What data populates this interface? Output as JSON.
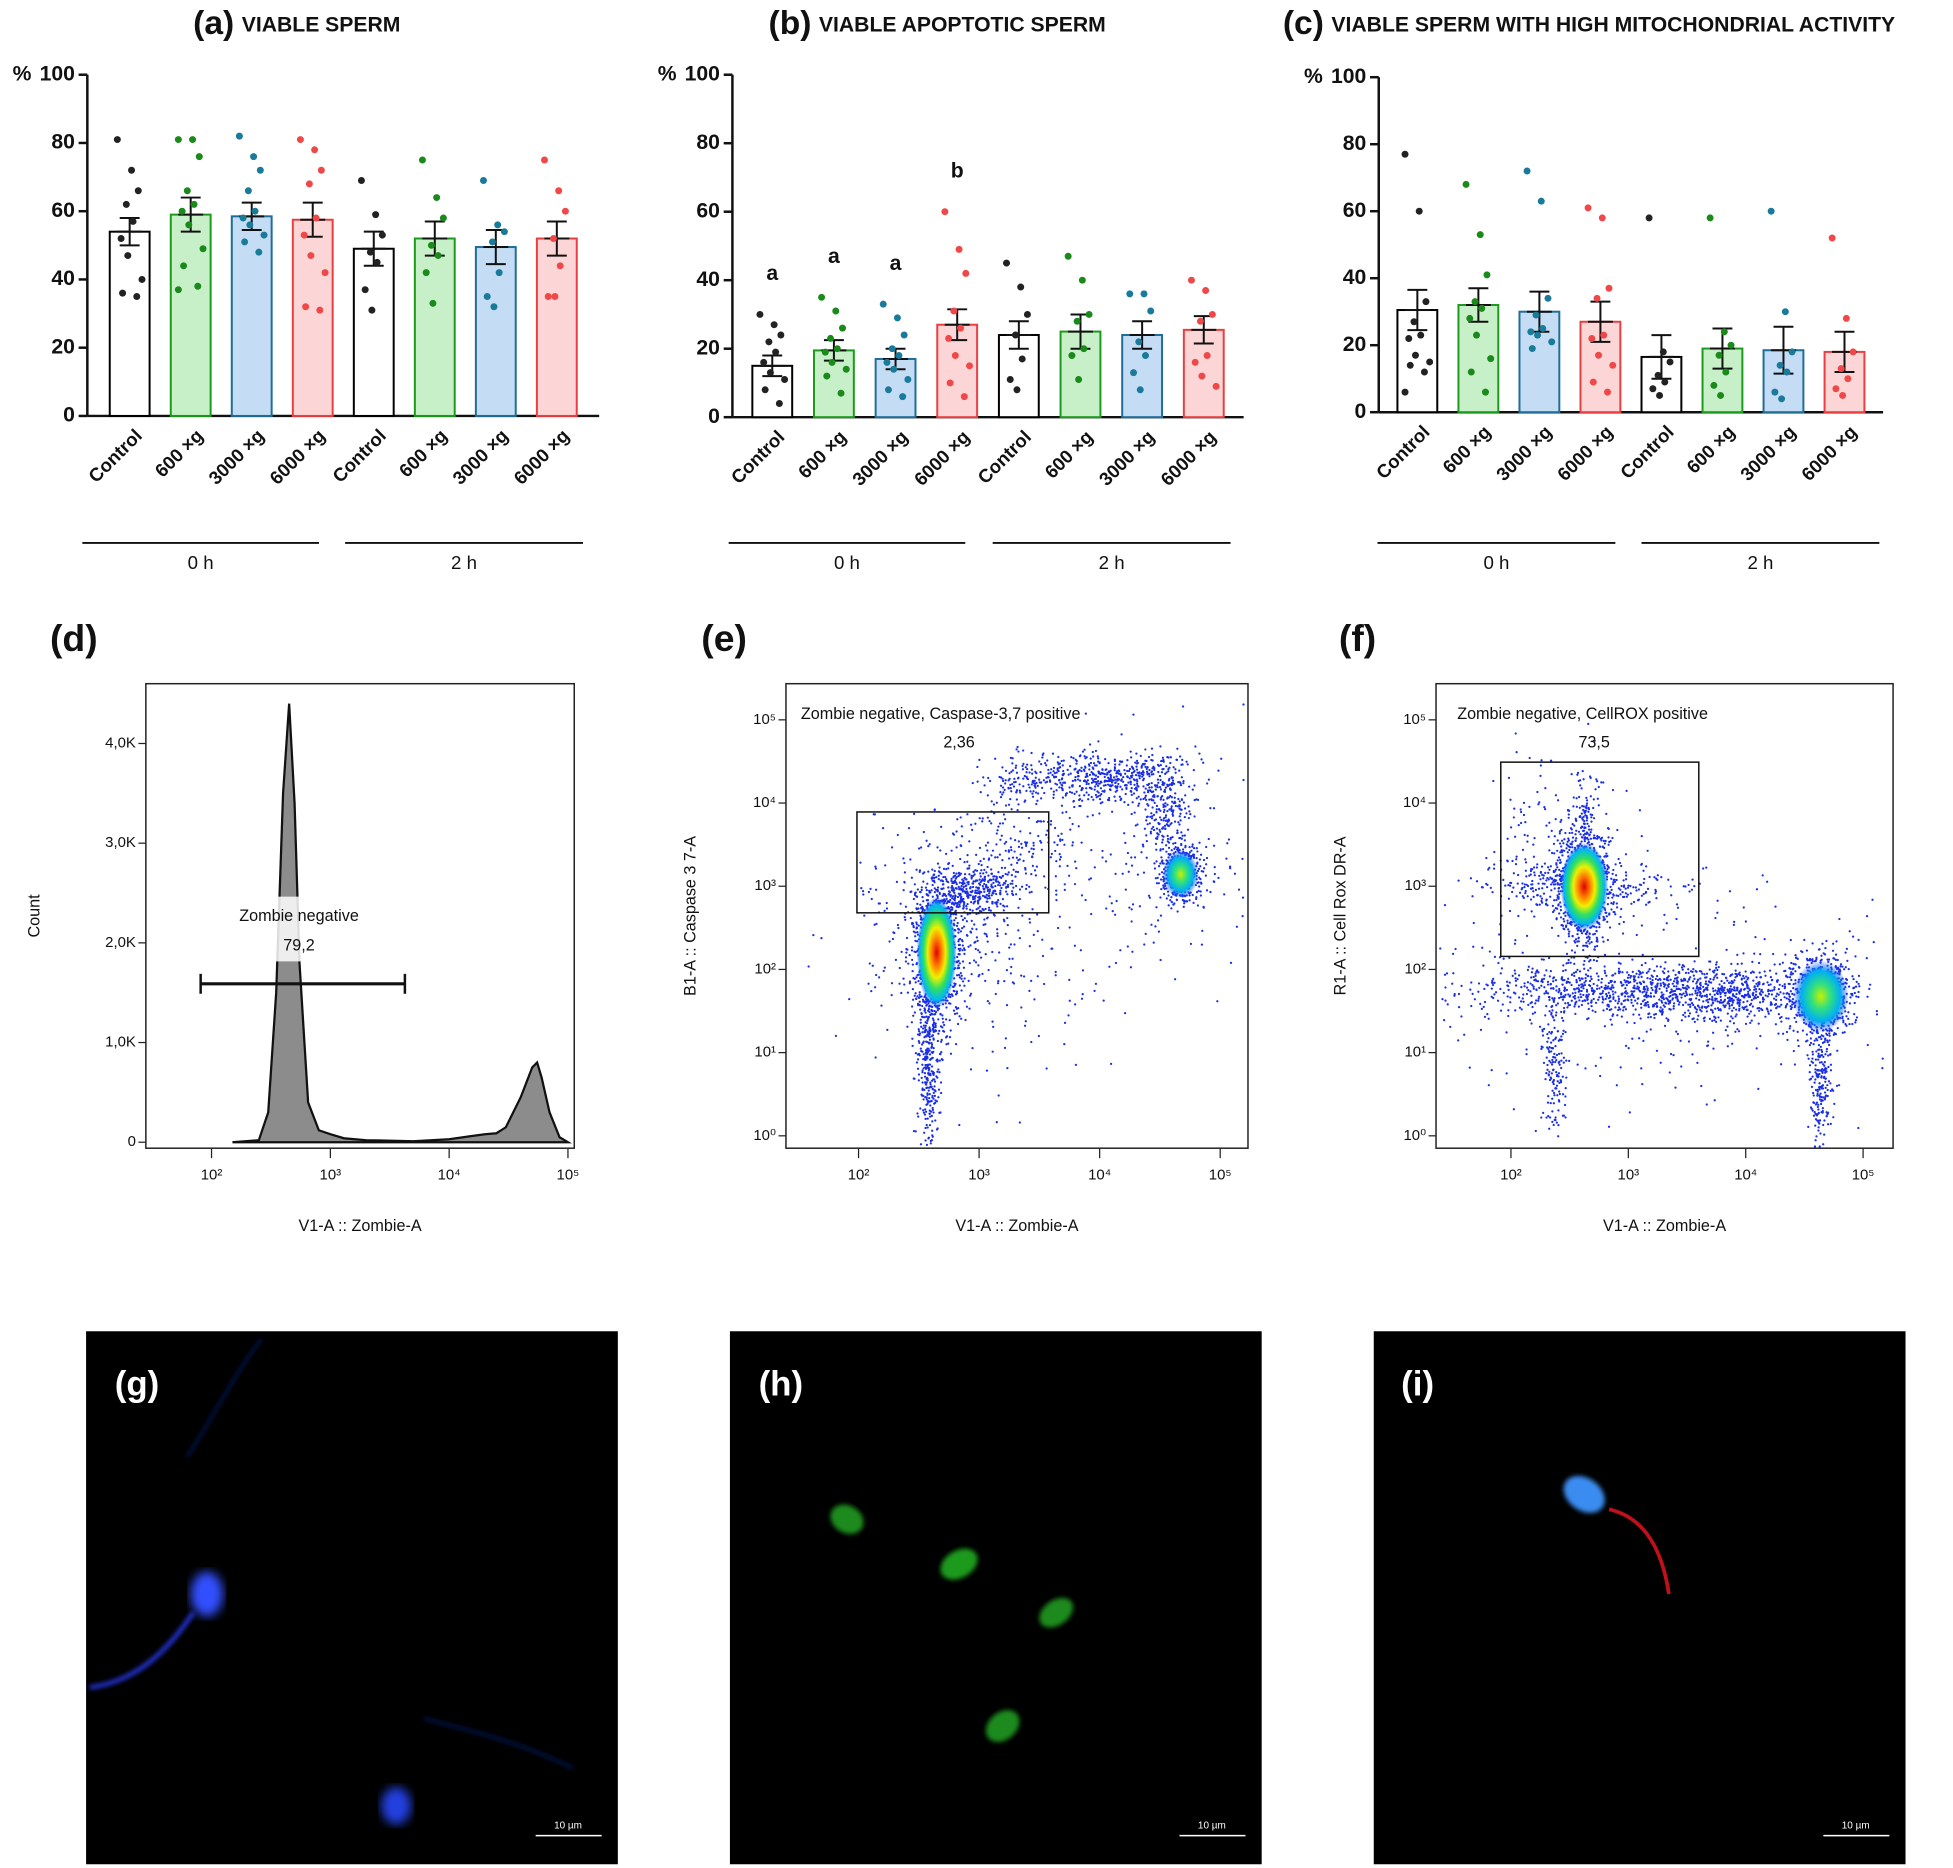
{
  "chart_data": [
    {
      "type": "bar",
      "panel": "(a)",
      "title": "VIABLE SPERM",
      "ylabel": "%",
      "categories": [
        "Control",
        "600 ×g",
        "3000 ×g",
        "6000 ×g",
        "Control",
        "600 ×g",
        "3000 ×g",
        "6000 ×g"
      ],
      "groups": [
        "0 h",
        "2 h"
      ],
      "values": [
        54,
        59,
        58.5,
        57.5,
        49,
        52,
        49.5,
        52
      ],
      "errors": [
        4,
        5,
        4,
        5,
        5,
        5,
        5,
        5
      ],
      "points": [
        [
          81,
          72,
          66,
          62,
          57,
          52,
          47,
          40,
          36,
          35
        ],
        [
          81,
          81,
          76,
          66,
          62,
          60,
          56,
          49,
          44,
          38,
          37
        ],
        [
          82,
          76,
          72,
          66,
          60,
          58,
          56,
          53,
          51,
          48
        ],
        [
          81,
          78,
          72,
          68,
          58,
          53,
          47,
          42,
          32,
          31
        ],
        [
          69,
          59,
          53,
          48,
          45,
          37,
          31
        ],
        [
          75,
          64,
          58,
          50,
          47,
          42,
          33
        ],
        [
          69,
          56,
          54,
          51,
          42,
          35,
          32
        ],
        [
          75,
          66,
          60,
          52,
          44,
          35,
          35
        ]
      ],
      "colors": [
        "#ffffff",
        "#c8f0c8",
        "#c4dcf4",
        "#fcd6d6",
        "#ffffff",
        "#c8f0c8",
        "#c4dcf4",
        "#fcd6d6"
      ],
      "edgecolors": [
        "#000000",
        "#1c9a1c",
        "#1f6d99",
        "#e84040",
        "#000000",
        "#1c9a1c",
        "#1f6d99",
        "#e84040"
      ],
      "point_colors": [
        "#222222",
        "#1a8a1a",
        "#1a7a9a",
        "#f04848",
        "#222222",
        "#1a8a1a",
        "#1a7a9a",
        "#f04848"
      ],
      "ylim": [
        0,
        100
      ],
      "yticks": [
        0,
        20,
        40,
        60,
        80,
        100
      ]
    },
    {
      "type": "bar",
      "panel": "(b)",
      "title": "VIABLE APOPTOTIC SPERM",
      "ylabel": "%",
      "categories": [
        "Control",
        "600 ×g",
        "3000 ×g",
        "6000 ×g",
        "Control",
        "600 ×g",
        "3000 ×g",
        "6000 ×g"
      ],
      "groups": [
        "0 h",
        "2 h"
      ],
      "values": [
        15,
        19.5,
        17,
        27,
        24,
        25,
        24,
        25.5
      ],
      "errors": [
        3,
        3,
        3,
        4.5,
        4,
        5,
        4,
        4
      ],
      "points": [
        [
          30,
          27,
          24,
          22,
          19,
          16,
          13,
          11,
          8,
          4
        ],
        [
          35,
          31,
          26,
          23,
          20,
          19,
          16,
          14,
          12,
          7
        ],
        [
          33,
          29,
          24,
          20,
          18,
          16,
          14,
          11,
          8,
          6
        ],
        [
          60,
          49,
          42,
          31,
          26,
          23,
          18,
          15,
          10,
          6
        ],
        [
          45,
          38,
          30,
          24,
          17,
          11,
          8
        ],
        [
          47,
          40,
          30,
          28,
          20,
          18,
          11
        ],
        [
          36,
          36,
          31,
          22,
          18,
          13,
          8
        ],
        [
          40,
          37,
          30,
          28,
          18,
          16,
          12,
          9
        ]
      ],
      "annotations": [
        "a",
        "a",
        "a",
        "b",
        null,
        null,
        null,
        null
      ],
      "colors": [
        "#ffffff",
        "#c8f0c8",
        "#c4dcf4",
        "#fcd6d6",
        "#ffffff",
        "#c8f0c8",
        "#c4dcf4",
        "#fcd6d6"
      ],
      "edgecolors": [
        "#000000",
        "#1c9a1c",
        "#1f6d99",
        "#e84040",
        "#000000",
        "#1c9a1c",
        "#1f6d99",
        "#e84040"
      ],
      "point_colors": [
        "#222222",
        "#1a8a1a",
        "#1a7a9a",
        "#f04848",
        "#222222",
        "#1a8a1a",
        "#1a7a9a",
        "#f04848"
      ],
      "ylim": [
        0,
        100
      ],
      "yticks": [
        0,
        20,
        40,
        60,
        80,
        100
      ]
    },
    {
      "type": "bar",
      "panel": "(c)",
      "title": "VIABLE SPERM WITH HIGH MITOCHONDRIAL ACTIVITY",
      "ylabel": "%",
      "categories": [
        "Control",
        "600 ×g",
        "3000 ×g",
        "6000 ×g",
        "Control",
        "600 ×g",
        "3000 ×g",
        "6000 ×g"
      ],
      "groups": [
        "0 h",
        "2 h"
      ],
      "values": [
        30.5,
        32,
        30,
        27,
        16.5,
        19,
        18.5,
        18
      ],
      "errors": [
        6,
        5,
        6,
        6,
        6.5,
        6,
        7,
        6
      ],
      "points": [
        [
          77,
          60,
          33,
          27,
          23,
          22,
          17,
          15,
          14,
          12,
          6
        ],
        [
          68,
          53,
          41,
          33,
          31,
          28,
          23,
          16,
          12,
          6
        ],
        [
          72,
          63,
          34,
          29,
          25,
          24,
          23,
          21,
          19
        ],
        [
          61,
          58,
          37,
          34,
          23,
          22,
          17,
          14,
          9,
          6
        ],
        [
          58,
          18,
          15,
          11,
          9,
          7,
          5
        ],
        [
          58,
          24,
          20,
          17,
          12,
          8,
          5
        ],
        [
          60,
          30,
          18,
          14,
          12,
          6,
          4
        ],
        [
          52,
          28,
          18,
          13,
          10,
          7,
          5
        ]
      ],
      "colors": [
        "#ffffff",
        "#c8f0c8",
        "#c4dcf4",
        "#fcd6d6",
        "#ffffff",
        "#c8f0c8",
        "#c4dcf4",
        "#fcd6d6"
      ],
      "edgecolors": [
        "#000000",
        "#1c9a1c",
        "#1f6d99",
        "#e84040",
        "#000000",
        "#1c9a1c",
        "#1f6d99",
        "#e84040"
      ],
      "point_colors": [
        "#222222",
        "#1a8a1a",
        "#1a7a9a",
        "#f04848",
        "#222222",
        "#1a8a1a",
        "#1a7a9a",
        "#f04848"
      ],
      "ylim": [
        0,
        100
      ],
      "yticks": [
        0,
        20,
        40,
        60,
        80,
        100
      ]
    },
    {
      "type": "area",
      "panel": "(d)",
      "ylabel": "Count",
      "xlabel": "V1-A :: Zombie-A",
      "x": [
        150,
        250,
        300,
        350,
        400,
        450,
        500,
        550,
        650,
        800,
        1000,
        1300,
        2000,
        5000,
        10000,
        15000,
        20000,
        25000,
        30000,
        40000,
        50000,
        55000,
        60000,
        70000,
        85000,
        100000
      ],
      "values": [
        0,
        20,
        300,
        1500,
        3500,
        4400,
        3400,
        1800,
        400,
        120,
        80,
        40,
        20,
        10,
        30,
        60,
        80,
        90,
        150,
        450,
        750,
        800,
        650,
        300,
        50,
        0
      ],
      "color": "#8c8c8c",
      "xscale": "log",
      "xlim": [
        28,
        113000
      ],
      "xticks": [
        {
          "value": 100,
          "label": "10²"
        },
        {
          "value": 1000,
          "label": "10³"
        },
        {
          "value": 10000,
          "label": "10⁴"
        },
        {
          "value": 100000,
          "label": "10⁵"
        }
      ],
      "ylim": [
        -60,
        4600
      ],
      "yticks": [
        0,
        {
          "value": 1000,
          "label": "1,0K"
        },
        {
          "value": 2000,
          "label": "2,0K"
        },
        {
          "value": 3000,
          "label": "3,0K"
        },
        {
          "value": 4000,
          "label": "4,0K"
        }
      ],
      "gate_label": "Zombie negative",
      "gate_value": "79,2"
    },
    {
      "type": "density",
      "panel": "(e)",
      "ylabel": "B1-A :: Caspase 3 7-A",
      "xlabel": "V1-A :: Zombie-A",
      "xscale": "log",
      "yscale": "log",
      "xlim": [
        25,
        170000
      ],
      "xticks": [
        {
          "value": 100,
          "label": "10²"
        },
        {
          "value": 1000,
          "label": "10³"
        },
        {
          "value": 10000,
          "label": "10⁴"
        },
        {
          "value": 100000,
          "label": "10⁵"
        }
      ],
      "ylim": [
        0.71,
        272000
      ],
      "yticks": [
        {
          "value": 1,
          "label": "10⁰"
        },
        {
          "value": 10,
          "label": "10¹"
        },
        {
          "value": 100,
          "label": "10²"
        },
        {
          "value": 1000,
          "label": "10³"
        },
        {
          "value": 10000,
          "label": "10⁴"
        },
        {
          "value": 100000,
          "label": "10⁵"
        }
      ],
      "gate_label": "Zombie negative, Caspase-3,7 positive",
      "gate_value": "2,36"
    },
    {
      "type": "density",
      "panel": "(f)",
      "ylabel": "R1-A :: Cell Rox DR-A",
      "xlabel": "V1-A :: Zombie-A",
      "xscale": "log",
      "yscale": "log",
      "xlim": [
        23,
        180000
      ],
      "xticks": [
        {
          "value": 100,
          "label": "10²"
        },
        {
          "value": 1000,
          "label": "10³"
        },
        {
          "value": 10000,
          "label": "10⁴"
        },
        {
          "value": 100000,
          "label": "10⁵"
        }
      ],
      "ylim": [
        0.71,
        272000
      ],
      "yticks": [
        {
          "value": 1,
          "label": "10⁰"
        },
        {
          "value": 10,
          "label": "10¹"
        },
        {
          "value": 100,
          "label": "10²"
        },
        {
          "value": 1000,
          "label": "10³"
        },
        {
          "value": 10000,
          "label": "10⁴"
        },
        {
          "value": 100000,
          "label": "10⁵"
        }
      ],
      "gate_label": "Zombie negative, CellROX positive",
      "gate_value": "73,5"
    }
  ],
  "images": [
    {
      "panel": "(g)",
      "scale_bar": "10 µm"
    },
    {
      "panel": "(h)",
      "scale_bar": "10 µm"
    },
    {
      "panel": "(i)",
      "scale_bar": "10 µm"
    }
  ]
}
